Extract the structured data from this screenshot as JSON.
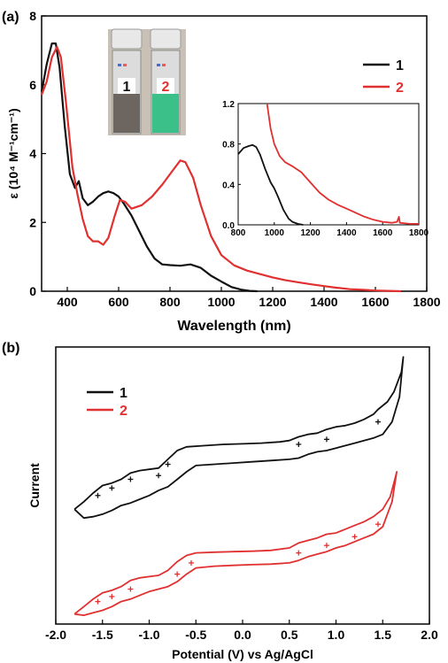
{
  "chart_data": [
    {
      "panel_label": "(a)",
      "type": "line",
      "xlabel": "Wavelength (nm)",
      "ylabel": "ε (10⁴ M⁻¹cm⁻¹)",
      "xlim": [
        300,
        1800
      ],
      "ylim": [
        0,
        8
      ],
      "xticks": [
        400,
        600,
        800,
        1000,
        1200,
        1400,
        1600,
        1800
      ],
      "yticks": [
        0,
        2,
        4,
        6,
        8
      ],
      "legend": "top-right",
      "series": [
        {
          "name": "1",
          "color": "#111111",
          "points": [
            [
              300,
              5.8
            ],
            [
              320,
              6.6
            ],
            [
              340,
              7.2
            ],
            [
              355,
              7.2
            ],
            [
              370,
              6.5
            ],
            [
              390,
              4.8
            ],
            [
              410,
              3.4
            ],
            [
              430,
              3.0
            ],
            [
              445,
              3.2
            ],
            [
              460,
              2.7
            ],
            [
              480,
              2.5
            ],
            [
              500,
              2.6
            ],
            [
              520,
              2.75
            ],
            [
              540,
              2.85
            ],
            [
              560,
              2.9
            ],
            [
              580,
              2.85
            ],
            [
              600,
              2.75
            ],
            [
              620,
              2.55
            ],
            [
              650,
              2.2
            ],
            [
              680,
              1.75
            ],
            [
              710,
              1.3
            ],
            [
              740,
              0.95
            ],
            [
              770,
              0.78
            ],
            [
              800,
              0.76
            ],
            [
              840,
              0.74
            ],
            [
              880,
              0.78
            ],
            [
              920,
              0.68
            ],
            [
              960,
              0.45
            ],
            [
              1000,
              0.28
            ],
            [
              1040,
              0.12
            ],
            [
              1080,
              0.04
            ],
            [
              1110,
              0.01
            ],
            [
              1140,
              0.0
            ]
          ]
        },
        {
          "name": "2",
          "color": "#e03030",
          "points": [
            [
              300,
              5.7
            ],
            [
              320,
              6.1
            ],
            [
              340,
              6.8
            ],
            [
              360,
              7.1
            ],
            [
              375,
              6.8
            ],
            [
              395,
              5.5
            ],
            [
              420,
              3.6
            ],
            [
              440,
              2.8
            ],
            [
              460,
              2.1
            ],
            [
              480,
              1.6
            ],
            [
              500,
              1.45
            ],
            [
              520,
              1.45
            ],
            [
              540,
              1.35
            ],
            [
              560,
              1.55
            ],
            [
              585,
              2.2
            ],
            [
              605,
              2.65
            ],
            [
              625,
              2.6
            ],
            [
              650,
              2.4
            ],
            [
              690,
              2.5
            ],
            [
              730,
              2.75
            ],
            [
              770,
              3.1
            ],
            [
              810,
              3.5
            ],
            [
              840,
              3.8
            ],
            [
              860,
              3.75
            ],
            [
              890,
              3.3
            ],
            [
              920,
              2.5
            ],
            [
              960,
              1.6
            ],
            [
              1000,
              1.05
            ],
            [
              1050,
              0.75
            ],
            [
              1100,
              0.6
            ],
            [
              1150,
              0.5
            ],
            [
              1200,
              0.4
            ],
            [
              1250,
              0.32
            ],
            [
              1300,
              0.26
            ],
            [
              1350,
              0.2
            ],
            [
              1400,
              0.15
            ],
            [
              1450,
              0.1
            ],
            [
              1500,
              0.06
            ],
            [
              1550,
              0.04
            ],
            [
              1600,
              0.02
            ],
            [
              1650,
              0.01
            ],
            [
              1700,
              0.0
            ]
          ]
        }
      ],
      "inset": {
        "type": "line",
        "xlim": [
          800,
          1800
        ],
        "ylim": [
          0,
          1.2
        ],
        "xticks": [
          800,
          1000,
          1200,
          1400,
          1600,
          1800
        ],
        "yticks": [
          0.0,
          0.4,
          0.8,
          1.2
        ],
        "series": [
          {
            "name": "1",
            "color": "#111111",
            "points": [
              [
                800,
                0.7
              ],
              [
                830,
                0.76
              ],
              [
                860,
                0.78
              ],
              [
                880,
                0.79
              ],
              [
                900,
                0.77
              ],
              [
                920,
                0.7
              ],
              [
                950,
                0.55
              ],
              [
                980,
                0.42
              ],
              [
                1000,
                0.36
              ],
              [
                1020,
                0.28
              ],
              [
                1050,
                0.15
              ],
              [
                1080,
                0.06
              ],
              [
                1100,
                0.03
              ],
              [
                1130,
                0.01
              ],
              [
                1160,
                0.0
              ]
            ]
          },
          {
            "name": "2",
            "color": "#e03030",
            "points": [
              [
                960,
                1.2
              ],
              [
                980,
                0.95
              ],
              [
                1000,
                0.8
              ],
              [
                1030,
                0.68
              ],
              [
                1060,
                0.62
              ],
              [
                1100,
                0.58
              ],
              [
                1150,
                0.52
              ],
              [
                1200,
                0.42
              ],
              [
                1250,
                0.32
              ],
              [
                1300,
                0.25
              ],
              [
                1350,
                0.2
              ],
              [
                1400,
                0.16
              ],
              [
                1450,
                0.12
              ],
              [
                1500,
                0.08
              ],
              [
                1550,
                0.05
              ],
              [
                1600,
                0.03
              ],
              [
                1650,
                0.02
              ],
              [
                1680,
                0.03
              ],
              [
                1690,
                0.08
              ],
              [
                1695,
                0.02
              ],
              [
                1750,
                0.01
              ],
              [
                1800,
                0.01
              ]
            ]
          }
        ]
      },
      "photo_labels": [
        "1",
        "2"
      ]
    },
    {
      "panel_label": "(b)",
      "type": "line",
      "xlabel": "Potential (V) vs Ag/AgCl",
      "ylabel": "Current",
      "xlim": [
        -2.0,
        2.0
      ],
      "xticks": [
        -2.0,
        -1.5,
        -1.0,
        -0.5,
        0.0,
        0.5,
        1.0,
        1.5,
        2.0
      ],
      "legend": "top-left",
      "series": [
        {
          "name": "1",
          "color": "#111111",
          "upper": [
            [
              -1.8,
              0.0
            ],
            [
              -1.7,
              0.3
            ],
            [
              -1.6,
              0.65
            ],
            [
              -1.5,
              0.95
            ],
            [
              -1.4,
              1.05
            ],
            [
              -1.3,
              1.2
            ],
            [
              -1.2,
              1.45
            ],
            [
              -1.1,
              1.55
            ],
            [
              -1.0,
              1.6
            ],
            [
              -0.9,
              1.65
            ],
            [
              -0.8,
              2.0
            ],
            [
              -0.7,
              2.35
            ],
            [
              -0.6,
              2.5
            ],
            [
              -0.4,
              2.55
            ],
            [
              -0.2,
              2.6
            ],
            [
              0.0,
              2.62
            ],
            [
              0.2,
              2.65
            ],
            [
              0.4,
              2.7
            ],
            [
              0.5,
              2.75
            ],
            [
              0.6,
              2.9
            ],
            [
              0.7,
              3.0
            ],
            [
              0.8,
              3.05
            ],
            [
              0.9,
              3.2
            ],
            [
              1.0,
              3.3
            ],
            [
              1.1,
              3.35
            ],
            [
              1.2,
              3.45
            ],
            [
              1.3,
              3.6
            ],
            [
              1.4,
              3.8
            ],
            [
              1.45,
              4.0
            ],
            [
              1.55,
              4.3
            ],
            [
              1.62,
              4.7
            ],
            [
              1.7,
              5.5
            ],
            [
              1.72,
              6.1
            ]
          ],
          "lower": [
            [
              1.72,
              6.1
            ],
            [
              1.68,
              4.5
            ],
            [
              1.6,
              3.5
            ],
            [
              1.5,
              3.0
            ],
            [
              1.4,
              2.85
            ],
            [
              1.3,
              2.75
            ],
            [
              1.2,
              2.65
            ],
            [
              1.1,
              2.55
            ],
            [
              1.0,
              2.45
            ],
            [
              0.9,
              2.35
            ],
            [
              0.8,
              2.3
            ],
            [
              0.7,
              2.2
            ],
            [
              0.6,
              2.05
            ],
            [
              0.5,
              2.0
            ],
            [
              0.3,
              1.95
            ],
            [
              0.1,
              1.9
            ],
            [
              -0.1,
              1.85
            ],
            [
              -0.3,
              1.8
            ],
            [
              -0.5,
              1.75
            ],
            [
              -0.6,
              1.5
            ],
            [
              -0.7,
              1.2
            ],
            [
              -0.8,
              0.9
            ],
            [
              -0.9,
              0.75
            ],
            [
              -1.0,
              0.55
            ],
            [
              -1.1,
              0.4
            ],
            [
              -1.2,
              0.25
            ],
            [
              -1.3,
              0.15
            ],
            [
              -1.4,
              -0.05
            ],
            [
              -1.5,
              -0.2
            ],
            [
              -1.6,
              -0.3
            ],
            [
              -1.7,
              -0.35
            ],
            [
              -1.8,
              0.0
            ]
          ],
          "markers": [
            [
              -1.55,
              0.55
            ],
            [
              -1.4,
              0.85
            ],
            [
              -1.2,
              1.2
            ],
            [
              -0.9,
              1.35
            ],
            [
              -0.8,
              1.8
            ],
            [
              0.6,
              2.6
            ],
            [
              0.9,
              2.8
            ],
            [
              1.45,
              3.5
            ]
          ]
        },
        {
          "name": "2",
          "color": "#e03030",
          "upper": [
            [
              -1.8,
              -4.2
            ],
            [
              -1.7,
              -3.9
            ],
            [
              -1.6,
              -3.6
            ],
            [
              -1.5,
              -3.35
            ],
            [
              -1.4,
              -3.25
            ],
            [
              -1.3,
              -3.1
            ],
            [
              -1.2,
              -2.85
            ],
            [
              -1.1,
              -2.75
            ],
            [
              -1.0,
              -2.7
            ],
            [
              -0.9,
              -2.65
            ],
            [
              -0.8,
              -2.45
            ],
            [
              -0.7,
              -2.1
            ],
            [
              -0.6,
              -1.85
            ],
            [
              -0.5,
              -1.75
            ],
            [
              -0.3,
              -1.72
            ],
            [
              -0.1,
              -1.7
            ],
            [
              0.1,
              -1.68
            ],
            [
              0.3,
              -1.65
            ],
            [
              0.5,
              -1.55
            ],
            [
              0.6,
              -1.35
            ],
            [
              0.7,
              -1.25
            ],
            [
              0.8,
              -1.15
            ],
            [
              0.9,
              -1.0
            ],
            [
              1.0,
              -0.95
            ],
            [
              1.1,
              -0.8
            ],
            [
              1.2,
              -0.65
            ],
            [
              1.3,
              -0.5
            ],
            [
              1.4,
              -0.3
            ],
            [
              1.5,
              0.0
            ],
            [
              1.58,
              0.5
            ],
            [
              1.63,
              1.2
            ],
            [
              1.65,
              1.5
            ]
          ],
          "lower": [
            [
              1.65,
              1.5
            ],
            [
              1.6,
              0.3
            ],
            [
              1.5,
              -0.7
            ],
            [
              1.4,
              -1.0
            ],
            [
              1.3,
              -1.15
            ],
            [
              1.2,
              -1.3
            ],
            [
              1.1,
              -1.45
            ],
            [
              1.0,
              -1.55
            ],
            [
              0.9,
              -1.7
            ],
            [
              0.8,
              -1.8
            ],
            [
              0.7,
              -1.9
            ],
            [
              0.6,
              -2.05
            ],
            [
              0.5,
              -2.15
            ],
            [
              0.3,
              -2.2
            ],
            [
              0.1,
              -2.22
            ],
            [
              -0.1,
              -2.25
            ],
            [
              -0.3,
              -2.28
            ],
            [
              -0.5,
              -2.35
            ],
            [
              -0.6,
              -2.6
            ],
            [
              -0.7,
              -2.9
            ],
            [
              -0.8,
              -3.1
            ],
            [
              -0.9,
              -3.2
            ],
            [
              -1.0,
              -3.3
            ],
            [
              -1.1,
              -3.45
            ],
            [
              -1.2,
              -3.6
            ],
            [
              -1.3,
              -3.7
            ],
            [
              -1.4,
              -3.9
            ],
            [
              -1.5,
              -4.05
            ],
            [
              -1.6,
              -4.15
            ],
            [
              -1.7,
              -4.25
            ],
            [
              -1.8,
              -4.2
            ]
          ],
          "markers": [
            [
              -1.55,
              -3.7
            ],
            [
              -1.4,
              -3.5
            ],
            [
              -1.2,
              -3.2
            ],
            [
              -0.7,
              -2.6
            ],
            [
              -0.55,
              -2.15
            ],
            [
              0.6,
              -1.75
            ],
            [
              0.9,
              -1.45
            ],
            [
              1.2,
              -1.1
            ],
            [
              1.45,
              -0.6
            ]
          ]
        }
      ],
      "ylim": [
        -4.6,
        6.5
      ]
    }
  ]
}
